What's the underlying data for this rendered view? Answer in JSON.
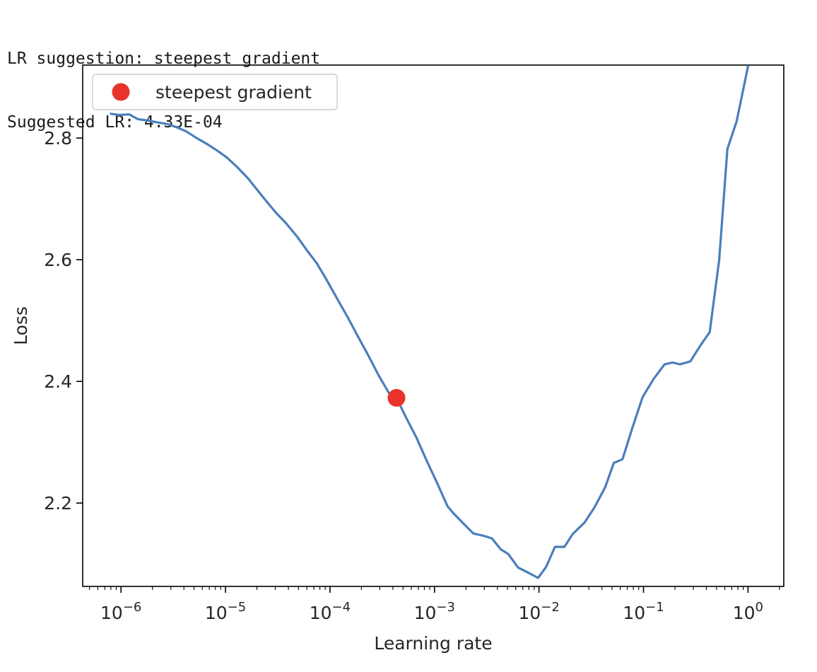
{
  "console": {
    "line1": "LR suggestion: steepest gradient",
    "line2": "Suggested LR: 4.33E-04"
  },
  "colors": {
    "line": "#4a7ebb",
    "marker": "#e8332a",
    "axes": "#000000",
    "text": "#262626"
  },
  "chart_data": {
    "type": "line",
    "title": "",
    "xlabel": "Learning rate",
    "ylabel": "Loss",
    "xscale": "log",
    "xlim": [
      4.3e-07,
      2.2
    ],
    "ylim": [
      2.063,
      2.92
    ],
    "grid": false,
    "legend": {
      "placement": "upper-left",
      "entries": [
        "steepest gradient"
      ]
    },
    "x_ticks": [
      {
        "value": 1e-06,
        "base": "10",
        "exp": "−6"
      },
      {
        "value": 1e-05,
        "base": "10",
        "exp": "−5"
      },
      {
        "value": 0.0001,
        "base": "10",
        "exp": "−4"
      },
      {
        "value": 0.001,
        "base": "10",
        "exp": "−3"
      },
      {
        "value": 0.01,
        "base": "10",
        "exp": "−2"
      },
      {
        "value": 0.1,
        "base": "10",
        "exp": "−1"
      },
      {
        "value": 1,
        "base": "10",
        "exp": "0"
      }
    ],
    "y_ticks": [
      {
        "value": 2.2,
        "label": "2.2"
      },
      {
        "value": 2.4,
        "label": "2.4"
      },
      {
        "value": 2.6,
        "label": "2.6"
      },
      {
        "value": 2.8,
        "label": "2.8"
      }
    ],
    "series": [
      {
        "x": [
          8e-07,
          9.5e-07,
          1.2e-06,
          1.45e-06,
          1.8e-06,
          2.2e-06,
          2.8e-06,
          3.5e-06,
          4.2e-06,
          5.3e-06,
          6.7e-06,
          8.4e-06,
          1.03e-05,
          1.3e-05,
          1.64e-05,
          2.05e-05,
          2.58e-05,
          3.05e-05,
          3.8e-05,
          4.9e-05,
          6.1e-05,
          7.5e-05,
          9.2e-05,
          0.000117,
          0.000147,
          0.000185,
          0.000232,
          0.000292,
          0.000366,
          0.000433,
          0.00053,
          0.00067,
          0.00084,
          0.00106,
          0.00133,
          0.00152,
          0.0019,
          0.00236,
          0.00297,
          0.00355,
          0.0043,
          0.0051,
          0.0063,
          0.0078,
          0.0098,
          0.0117,
          0.0142,
          0.0175,
          0.021,
          0.0273,
          0.034,
          0.043,
          0.052,
          0.063,
          0.078,
          0.098,
          0.125,
          0.159,
          0.19,
          0.223,
          0.281,
          0.347,
          0.43,
          0.53,
          0.635,
          0.78,
          1.0
        ],
        "y": [
          2.84,
          2.838,
          2.839,
          2.831,
          2.829,
          2.826,
          2.823,
          2.817,
          2.811,
          2.8,
          2.79,
          2.779,
          2.768,
          2.752,
          2.734,
          2.713,
          2.692,
          2.677,
          2.66,
          2.637,
          2.614,
          2.594,
          2.568,
          2.536,
          2.506,
          2.474,
          2.443,
          2.41,
          2.381,
          2.373,
          2.342,
          2.308,
          2.27,
          2.233,
          2.195,
          2.183,
          2.166,
          2.15,
          2.146,
          2.142,
          2.124,
          2.116,
          2.094,
          2.086,
          2.077,
          2.095,
          2.128,
          2.128,
          2.149,
          2.168,
          2.193,
          2.226,
          2.266,
          2.272,
          2.323,
          2.374,
          2.404,
          2.428,
          2.431,
          2.428,
          2.433,
          2.458,
          2.481,
          2.6,
          2.782,
          2.828,
          2.918
        ]
      }
    ],
    "marker": {
      "label": "steepest gradient",
      "x": 0.000433,
      "y": 2.373
    }
  }
}
